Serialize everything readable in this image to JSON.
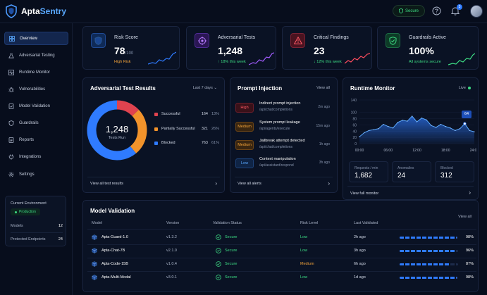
{
  "app": {
    "name_part1": "Apta",
    "name_part2": "Sentry"
  },
  "topbar": {
    "status_label": "Secure",
    "notifications_count": "3"
  },
  "sidebar": {
    "items": [
      {
        "label": "Overview",
        "icon": "grid-icon"
      },
      {
        "label": "Adversarial Testing",
        "icon": "flask-icon"
      },
      {
        "label": "Runtime Monitor",
        "icon": "pulse-icon"
      },
      {
        "label": "Vulnerabilities",
        "icon": "bug-icon"
      },
      {
        "label": "Model Validation",
        "icon": "check-doc-icon"
      },
      {
        "label": "Guardrails",
        "icon": "shield-icon"
      },
      {
        "label": "Reports",
        "icon": "report-icon"
      },
      {
        "label": "Integrations",
        "icon": "plug-icon"
      },
      {
        "label": "Settings",
        "icon": "gear-icon"
      }
    ],
    "environment": {
      "title": "Current Environment",
      "badge": "Production",
      "models_label": "Models",
      "models_value": "12",
      "endpoints_label": "Protected Endpoints",
      "endpoints_value": "24"
    }
  },
  "stats": [
    {
      "label": "Risk Score",
      "value": "78",
      "unit": "/100",
      "sub": "High Risk",
      "sub_color": "#f2a33a",
      "accent": "#2f7bff"
    },
    {
      "label": "Adversarial Tests",
      "value": "1,248",
      "unit": "",
      "sub": "↑ 18% this week",
      "sub_color": "#3ddc84",
      "accent": "#a35cff"
    },
    {
      "label": "Critical Findings",
      "value": "23",
      "unit": "",
      "sub": "↓ 12% this week",
      "sub_color": "#3ddc84",
      "accent": "#ff4d5e"
    },
    {
      "label": "Guardrails Active",
      "value": "100%",
      "unit": "",
      "sub": "All systems secure",
      "sub_color": "#3ddc84",
      "accent": "#3ddc84"
    }
  ],
  "adversarial": {
    "title": "Adversarial Test Results",
    "period": "Last 7 days",
    "total": "1,248",
    "total_label": "Tests Run",
    "legend": [
      {
        "name": "Successful",
        "value": "164",
        "pct": "13%",
        "color": "#e0434f",
        "share": 0.13
      },
      {
        "name": "Partially Successful",
        "value": "321",
        "pct": "26%",
        "color": "#f2932b",
        "share": 0.26
      },
      {
        "name": "Blocked",
        "value": "763",
        "pct": "61%",
        "color": "#2f7bff",
        "share": 0.61
      }
    ],
    "link": "View all test results"
  },
  "injection": {
    "title": "Prompt Injection",
    "view_all": "View all",
    "items": [
      {
        "severity": "High",
        "title": "Indirect prompt injection",
        "path": "/api/chat/completions",
        "time": "2m ago",
        "fg": "#ff5a66",
        "bg": "#3a1119"
      },
      {
        "severity": "Medium",
        "title": "System prompt leakage",
        "path": "/api/agents/execute",
        "time": "15m ago",
        "fg": "#f2a33a",
        "bg": "#3a2610"
      },
      {
        "severity": "Medium",
        "title": "Jailbreak attempt detected",
        "path": "/api/chat/completions",
        "time": "1h ago",
        "fg": "#f2a33a",
        "bg": "#3a2610"
      },
      {
        "severity": "Low",
        "title": "Context manipulation",
        "path": "/api/assistant/respond",
        "time": "3h ago",
        "fg": "#5aa9ff",
        "bg": "#0f2445"
      }
    ],
    "link": "View all alerts"
  },
  "runtime": {
    "title": "Runtime Monitor",
    "live": "Live",
    "tooltip_value": "64",
    "link": "View full monitor",
    "tiles": [
      {
        "label": "Requests / min",
        "value": "1,682"
      },
      {
        "label": "Anomalies",
        "value": "24"
      },
      {
        "label": "Blocked",
        "value": "312"
      }
    ]
  },
  "chart_data": {
    "type": "area",
    "x": [
      "00:00",
      "01:00",
      "02:00",
      "03:00",
      "04:00",
      "05:00",
      "06:00",
      "07:00",
      "08:00",
      "09:00",
      "10:00",
      "11:00",
      "12:00",
      "13:00",
      "14:00",
      "15:00",
      "16:00",
      "17:00",
      "18:00",
      "19:00",
      "20:00",
      "21:00",
      "22:00",
      "23:00",
      "24:00"
    ],
    "values": [
      22,
      35,
      42,
      45,
      48,
      62,
      55,
      50,
      68,
      75,
      72,
      88,
      70,
      82,
      76,
      58,
      52,
      62,
      55,
      50,
      42,
      48,
      64,
      42,
      38
    ],
    "xticks": [
      "00:00",
      "06:00",
      "12:00",
      "18:00",
      "24:00"
    ],
    "yticks": [
      "0",
      "20",
      "40",
      "60",
      "80",
      "100",
      "140"
    ],
    "ylim": [
      0,
      140
    ],
    "title": "",
    "xlabel": "",
    "ylabel": ""
  },
  "validation": {
    "title": "Model Validation",
    "view_all": "View all",
    "headers": {
      "model": "Model",
      "version": "Version",
      "status": "Validation Status",
      "risk": "Risk Level",
      "last": "Last Validated"
    },
    "rows": [
      {
        "model": "Apta-Guard-1.0",
        "version": "v1.3.2",
        "status": "Secure",
        "risk": "Low",
        "risk_color": "#3ddc84",
        "last": "2h ago",
        "score": "98%",
        "fill": 0.98
      },
      {
        "model": "Apta-Chat-7B",
        "version": "v2.1.0",
        "status": "Secure",
        "risk": "Low",
        "risk_color": "#3ddc84",
        "last": "3h ago",
        "score": "96%",
        "fill": 0.96
      },
      {
        "model": "Apta-Code-15B",
        "version": "v1.0.4",
        "status": "Secure",
        "risk": "Medium",
        "risk_color": "#f2a33a",
        "last": "6h ago",
        "score": "87%",
        "fill": 0.87
      },
      {
        "model": "Apta-Multi-Modal",
        "version": "v3.0.1",
        "status": "Secure",
        "risk": "Low",
        "risk_color": "#3ddc84",
        "last": "1d ago",
        "score": "98%",
        "fill": 0.98
      }
    ]
  },
  "colors": {
    "accent": "#2f7bff",
    "success": "#3ddc84",
    "warning": "#f2a33a",
    "danger": "#ff4d5e",
    "background": "#070d1c"
  }
}
